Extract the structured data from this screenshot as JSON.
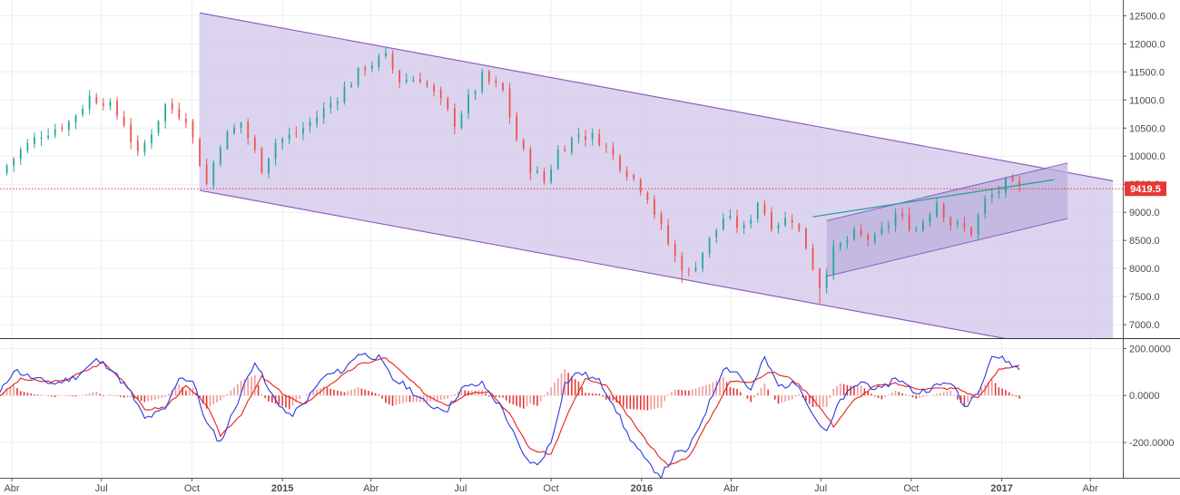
{
  "colors": {
    "up": "#26a69a",
    "down": "#ef5350",
    "channel_fill": "#d6cdec",
    "channel_line": "#8e5fc6",
    "trend_line": "#2e9e9a",
    "grid": "#eeeeee",
    "current_price": "#e53935",
    "macd_line": "#2b38e0",
    "signal_line": "#e8201a",
    "hist_up": "#ef9a9a",
    "hist_down": "#e53935",
    "axis": "#555555"
  },
  "chart_data": [
    {
      "type": "candlestick",
      "pane": "price",
      "timeframe": "weekly",
      "x_ticks": [
        "Abr",
        "Jul",
        "Oct",
        "2015",
        "Abr",
        "Jul",
        "Oct",
        "2016",
        "Abr",
        "Jul",
        "Oct",
        "2017",
        "Abr"
      ],
      "x_tick_dates": [
        "2014-04-01",
        "2014-07-01",
        "2014-10-01",
        "2015-01-01",
        "2015-04-01",
        "2015-07-01",
        "2015-10-01",
        "2016-01-01",
        "2016-04-01",
        "2016-07-01",
        "2016-10-01",
        "2017-01-01",
        "2017-04-01"
      ],
      "xlim": [
        "2014-03-20",
        "2017-05-04"
      ],
      "y_ticks": [
        "12500.0",
        "12000.0",
        "11500.0",
        "11000.0",
        "10500.0",
        "10000.0",
        "9500.0",
        "9000.0",
        "8500.0",
        "8000.0",
        "7500.0",
        "7000.0"
      ],
      "ylim": [
        6760,
        12780
      ],
      "current_price": "9419.5",
      "close_path": [
        [
          "2014-03-20",
          9700
        ],
        [
          "2014-04-10",
          10100
        ],
        [
          "2014-05-01",
          10400
        ],
        [
          "2014-05-29",
          10600
        ],
        [
          "2014-06-19",
          11050
        ],
        [
          "2014-07-03",
          11000
        ],
        [
          "2014-07-24",
          10600
        ],
        [
          "2014-08-07",
          10000
        ],
        [
          "2014-08-21",
          10450
        ],
        [
          "2014-09-04",
          10900
        ],
        [
          "2014-09-25",
          10700
        ],
        [
          "2014-10-16",
          9500
        ],
        [
          "2014-10-30",
          10250
        ],
        [
          "2014-11-20",
          10600
        ],
        [
          "2014-12-11",
          9800
        ],
        [
          "2014-12-25",
          10250
        ],
        [
          "2015-01-15",
          10400
        ],
        [
          "2015-02-05",
          10700
        ],
        [
          "2015-03-05",
          11200
        ],
        [
          "2015-03-26",
          11600
        ],
        [
          "2015-04-16",
          11750
        ],
        [
          "2015-04-30",
          11350
        ],
        [
          "2015-05-21",
          11400
        ],
        [
          "2015-06-11",
          10950
        ],
        [
          "2015-06-25",
          10600
        ],
        [
          "2015-07-09",
          11000
        ],
        [
          "2015-07-23",
          11400
        ],
        [
          "2015-08-13",
          11150
        ],
        [
          "2015-08-27",
          10300
        ],
        [
          "2015-09-10",
          9800
        ],
        [
          "2015-09-24",
          9550
        ],
        [
          "2015-10-08",
          10100
        ],
        [
          "2015-10-29",
          10400
        ],
        [
          "2015-11-19",
          10300
        ],
        [
          "2015-12-03",
          10000
        ],
        [
          "2015-12-24",
          9600
        ],
        [
          "2016-01-07",
          9300
        ],
        [
          "2016-01-21",
          8700
        ],
        [
          "2016-02-04",
          8200
        ],
        [
          "2016-02-18",
          7900
        ],
        [
          "2016-03-03",
          8300
        ],
        [
          "2016-03-24",
          8900
        ],
        [
          "2016-04-14",
          8700
        ],
        [
          "2016-04-28",
          9200
        ],
        [
          "2016-05-12",
          8800
        ],
        [
          "2016-06-02",
          8900
        ],
        [
          "2016-06-16",
          8400
        ],
        [
          "2016-06-30",
          7700
        ],
        [
          "2016-07-14",
          8300
        ],
        [
          "2016-08-04",
          8600
        ],
        [
          "2016-08-25",
          8500
        ],
        [
          "2016-09-15",
          8950
        ],
        [
          "2016-10-06",
          8700
        ],
        [
          "2016-10-27",
          9200
        ],
        [
          "2016-11-10",
          8800
        ],
        [
          "2016-12-01",
          8650
        ],
        [
          "2016-12-15",
          9200
        ],
        [
          "2017-01-05",
          9500
        ],
        [
          "2017-01-19",
          9419.5
        ]
      ],
      "extremes": [
        {
          "date": "2015-04-13",
          "high": 11930
        },
        {
          "date": "2016-02-11",
          "low": 7740
        },
        {
          "date": "2016-06-27",
          "low": 7380
        }
      ],
      "drawings": {
        "descending_channel": {
          "upper": [
            [
              "2014-10-09",
              12550
            ],
            [
              "2017-04-24",
              9560
            ]
          ],
          "lower": [
            [
              "2014-10-09",
              9390
            ],
            [
              "2017-04-24",
              6400
            ]
          ]
        },
        "rising_channel": {
          "upper": [
            [
              "2016-07-07",
              8850
            ],
            [
              "2017-03-09",
              9880
            ]
          ],
          "lower": [
            [
              "2016-07-07",
              7860
            ],
            [
              "2017-03-09",
              8890
            ]
          ]
        },
        "trend_line": [
          [
            "2016-06-23",
            8920
          ],
          [
            "2017-02-23",
            9580
          ]
        ]
      }
    },
    {
      "type": "macd",
      "pane": "indicator",
      "series": [
        {
          "role": "macd",
          "color_key": "macd_line",
          "points": [
            [
              "2014-03-20",
              10
            ],
            [
              "2014-04-03",
              110
            ],
            [
              "2014-04-24",
              70
            ],
            [
              "2014-05-15",
              50
            ],
            [
              "2014-06-05",
              80
            ],
            [
              "2014-06-26",
              150
            ],
            [
              "2014-07-10",
              120
            ],
            [
              "2014-07-31",
              10
            ],
            [
              "2014-08-14",
              -100
            ],
            [
              "2014-09-04",
              -60
            ],
            [
              "2014-09-18",
              80
            ],
            [
              "2014-10-02",
              60
            ],
            [
              "2014-10-16",
              -120
            ],
            [
              "2014-10-30",
              -200
            ],
            [
              "2014-11-13",
              -60
            ],
            [
              "2014-12-04",
              150
            ],
            [
              "2014-12-18",
              20
            ],
            [
              "2015-01-08",
              -90
            ],
            [
              "2015-01-22",
              -40
            ],
            [
              "2015-02-12",
              80
            ],
            [
              "2015-03-05",
              110
            ],
            [
              "2015-03-19",
              180
            ],
            [
              "2015-04-09",
              160
            ],
            [
              "2015-04-23",
              70
            ],
            [
              "2015-05-07",
              40
            ],
            [
              "2015-05-28",
              -40
            ],
            [
              "2015-06-18",
              -60
            ],
            [
              "2015-07-02",
              30
            ],
            [
              "2015-07-23",
              50
            ],
            [
              "2015-08-13",
              -60
            ],
            [
              "2015-09-03",
              -260
            ],
            [
              "2015-09-17",
              -300
            ],
            [
              "2015-10-01",
              -200
            ],
            [
              "2015-10-15",
              50
            ],
            [
              "2015-10-29",
              100
            ],
            [
              "2015-11-19",
              60
            ],
            [
              "2015-12-03",
              -30
            ],
            [
              "2015-12-17",
              -160
            ],
            [
              "2016-01-07",
              -290
            ],
            [
              "2016-01-21",
              -340
            ],
            [
              "2016-02-04",
              -250
            ],
            [
              "2016-02-18",
              -230
            ],
            [
              "2016-03-10",
              -30
            ],
            [
              "2016-03-24",
              120
            ],
            [
              "2016-04-07",
              100
            ],
            [
              "2016-04-21",
              20
            ],
            [
              "2016-05-05",
              160
            ],
            [
              "2016-05-19",
              40
            ],
            [
              "2016-06-09",
              50
            ],
            [
              "2016-06-23",
              -80
            ],
            [
              "2016-07-07",
              -160
            ],
            [
              "2016-07-21",
              -20
            ],
            [
              "2016-08-11",
              60
            ],
            [
              "2016-09-01",
              20
            ],
            [
              "2016-09-15",
              80
            ],
            [
              "2016-10-06",
              10
            ],
            [
              "2016-10-27",
              40
            ],
            [
              "2016-11-10",
              60
            ],
            [
              "2016-11-24",
              -50
            ],
            [
              "2016-12-08",
              20
            ],
            [
              "2016-12-22",
              170
            ],
            [
              "2017-01-05",
              150
            ],
            [
              "2017-01-19",
              110
            ]
          ]
        },
        {
          "role": "signal",
          "color_key": "signal_line",
          "points": [
            [
              "2014-03-20",
              0
            ],
            [
              "2014-04-10",
              70
            ],
            [
              "2014-05-01",
              60
            ],
            [
              "2014-05-22",
              60
            ],
            [
              "2014-06-12",
              100
            ],
            [
              "2014-07-03",
              140
            ],
            [
              "2014-07-24",
              60
            ],
            [
              "2014-08-14",
              -60
            ],
            [
              "2014-09-04",
              -50
            ],
            [
              "2014-09-25",
              40
            ],
            [
              "2014-10-16",
              -40
            ],
            [
              "2014-10-30",
              -170
            ],
            [
              "2014-11-20",
              -80
            ],
            [
              "2014-12-11",
              80
            ],
            [
              "2015-01-01",
              10
            ],
            [
              "2015-01-22",
              -40
            ],
            [
              "2015-02-19",
              50
            ],
            [
              "2015-03-19",
              130
            ],
            [
              "2015-04-16",
              160
            ],
            [
              "2015-05-07",
              80
            ],
            [
              "2015-05-28",
              0
            ],
            [
              "2015-06-18",
              -40
            ],
            [
              "2015-07-09",
              10
            ],
            [
              "2015-07-30",
              20
            ],
            [
              "2015-08-20",
              -80
            ],
            [
              "2015-09-10",
              -230
            ],
            [
              "2015-10-01",
              -250
            ],
            [
              "2015-10-22",
              -40
            ],
            [
              "2015-11-05",
              70
            ],
            [
              "2015-11-26",
              40
            ],
            [
              "2015-12-17",
              -80
            ],
            [
              "2016-01-07",
              -200
            ],
            [
              "2016-01-28",
              -300
            ],
            [
              "2016-02-18",
              -260
            ],
            [
              "2016-03-10",
              -100
            ],
            [
              "2016-03-31",
              60
            ],
            [
              "2016-04-21",
              60
            ],
            [
              "2016-05-12",
              100
            ],
            [
              "2016-06-02",
              70
            ],
            [
              "2016-06-23",
              -10
            ],
            [
              "2016-07-14",
              -130
            ],
            [
              "2016-08-04",
              -20
            ],
            [
              "2016-08-25",
              40
            ],
            [
              "2016-09-15",
              50
            ],
            [
              "2016-10-06",
              30
            ],
            [
              "2016-10-27",
              30
            ],
            [
              "2016-11-17",
              30
            ],
            [
              "2016-12-08",
              -10
            ],
            [
              "2016-12-29",
              110
            ],
            [
              "2017-01-19",
              130
            ]
          ]
        }
      ],
      "histogram": "macd minus signal",
      "y_ticks": [
        "200.0000",
        "0.0000",
        "-200.0000"
      ],
      "ylim": [
        -350,
        240
      ]
    }
  ]
}
